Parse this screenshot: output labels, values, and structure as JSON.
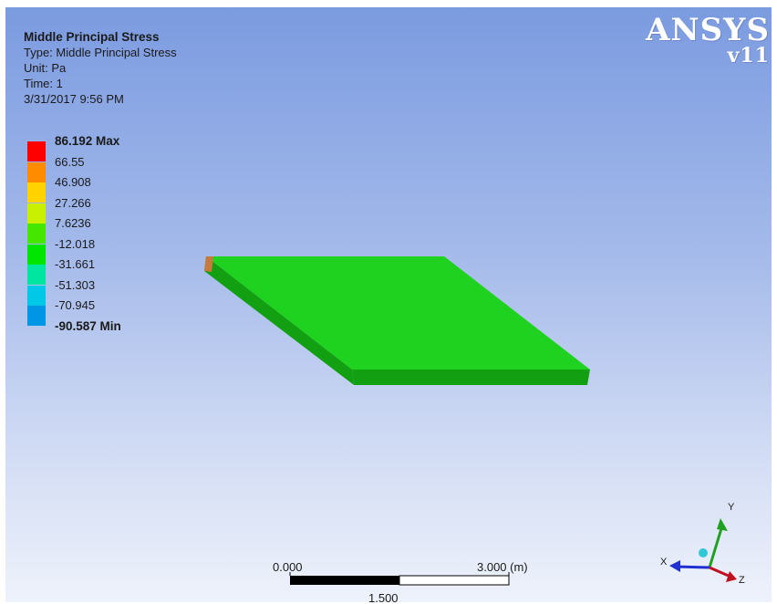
{
  "result_info": {
    "title": "Middle Principal Stress",
    "type": "Type: Middle Principal Stress",
    "unit": "Unit: Pa",
    "time": "Time: 1",
    "date": "3/31/2017 9:56 PM"
  },
  "legend": {
    "labels": [
      "86.192 Max",
      "66.55",
      "46.908",
      "27.266",
      "7.6236",
      "-12.018",
      "-31.661",
      "-51.303",
      "-70.945",
      "-90.587 Min"
    ],
    "colors": [
      "#ff0000",
      "#ff8c00",
      "#ffd200",
      "#c8f000",
      "#45e600",
      "#00e600",
      "#00e6a0",
      "#00c8e6",
      "#0096e6",
      "#0000ff"
    ]
  },
  "logo": {
    "name": "ANSYS",
    "version": "v11"
  },
  "model": {
    "plate_color": "#1fd21f",
    "plate_edge_color": "#12a012",
    "corner_color": "#c87a3c"
  },
  "scale_bar": {
    "left_label": "0.000",
    "right_label": "3.000 (m)",
    "mid_label": "1.500"
  },
  "triad": {
    "x_label": "X",
    "y_label": "Y",
    "z_label": "Z",
    "x_color": "#2030d0",
    "y_color": "#20a020",
    "z_color": "#c01020"
  }
}
